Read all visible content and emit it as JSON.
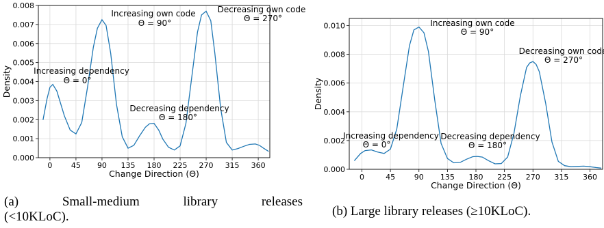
{
  "chart_data": [
    {
      "type": "line",
      "panel": "a",
      "xlabel": "Change Direction (Θ)",
      "ylabel": "Density",
      "xlim": [
        -20,
        380
      ],
      "ylim": [
        0,
        0.008
      ],
      "grid": true,
      "x_ticks": [
        "0",
        "45",
        "90",
        "135",
        "180",
        "225",
        "270",
        "315",
        "360"
      ],
      "y_ticks": [
        "0.000",
        "0.001",
        "0.002",
        "0.003",
        "0.004",
        "0.005",
        "0.006",
        "0.007",
        "0.008"
      ],
      "series": [
        {
          "x": [
            -12,
            -5,
            0,
            5,
            12,
            25,
            35,
            45,
            55,
            65,
            75,
            82,
            90,
            97,
            105,
            115,
            125,
            135,
            145,
            155,
            165,
            172,
            180,
            188,
            195,
            205,
            215,
            225,
            235,
            245,
            255,
            262,
            270,
            278,
            285,
            295,
            305,
            315,
            325,
            335,
            345,
            355,
            362,
            370,
            378
          ],
          "y": [
            0.00198,
            0.0031,
            0.0037,
            0.00385,
            0.0035,
            0.0022,
            0.00145,
            0.00125,
            0.00185,
            0.0037,
            0.0058,
            0.0068,
            0.00725,
            0.00695,
            0.0055,
            0.0028,
            0.0011,
            0.0005,
            0.00065,
            0.00115,
            0.0016,
            0.00178,
            0.0018,
            0.00145,
            0.00098,
            0.00055,
            0.0004,
            0.00062,
            0.0018,
            0.0042,
            0.0066,
            0.0075,
            0.0077,
            0.0072,
            0.0055,
            0.0026,
            0.0008,
            0.0004,
            0.00048,
            0.0006,
            0.0007,
            0.00072,
            0.00065,
            0.00048,
            0.00033
          ]
        }
      ],
      "annotations": [
        {
          "text": "Increasing own code",
          "sub": "Θ = 90°"
        },
        {
          "text": "Decreasing own code",
          "sub": "Θ = 270°"
        },
        {
          "text": "Increasing dependency",
          "sub": "Θ = 0°"
        },
        {
          "text": "Decreasing dependency",
          "sub": "Θ = 180°"
        }
      ]
    },
    {
      "type": "line",
      "panel": "b",
      "xlabel": "Change Direction (Θ)",
      "ylabel": "Density",
      "xlim": [
        -20,
        380
      ],
      "ylim": [
        0,
        0.0105
      ],
      "grid": true,
      "x_ticks": [
        "0",
        "45",
        "90",
        "135",
        "180",
        "225",
        "270",
        "315",
        "360"
      ],
      "y_ticks": [
        "0.000",
        "0.002",
        "0.004",
        "0.006",
        "0.008",
        "0.010"
      ],
      "series": [
        {
          "x": [
            -12,
            -2,
            5,
            15,
            25,
            35,
            45,
            55,
            65,
            75,
            82,
            90,
            98,
            105,
            115,
            125,
            135,
            145,
            155,
            165,
            175,
            182,
            190,
            200,
            210,
            220,
            230,
            240,
            250,
            260,
            265,
            270,
            275,
            280,
            290,
            300,
            310,
            320,
            330,
            340,
            350,
            360,
            370,
            378
          ],
          "y": [
            0.0006,
            0.0011,
            0.0013,
            0.00135,
            0.0012,
            0.0011,
            0.0014,
            0.0028,
            0.0057,
            0.0086,
            0.0097,
            0.0099,
            0.0095,
            0.0082,
            0.0048,
            0.0018,
            0.00075,
            0.00045,
            0.00048,
            0.0007,
            0.00088,
            0.0009,
            0.00085,
            0.0006,
            0.00038,
            0.0004,
            0.00085,
            0.0025,
            0.0051,
            0.0071,
            0.0074,
            0.0075,
            0.0073,
            0.0068,
            0.0046,
            0.0019,
            0.00055,
            0.00025,
            0.00018,
            0.0002,
            0.00022,
            0.00018,
            0.00012,
            8e-05
          ]
        }
      ],
      "annotations": [
        {
          "text": "Increasing own code",
          "sub": "Θ = 90°"
        },
        {
          "text": "Decreasing own code",
          "sub": "Θ = 270°"
        },
        {
          "text": "Increasing dependency",
          "sub": "Θ = 0°"
        },
        {
          "text": "Decreasing dependency",
          "sub": "Θ = 180°"
        }
      ]
    }
  ],
  "captions": {
    "a_row1": [
      "(a)",
      "Small-medium",
      "library",
      "releases"
    ],
    "a_row2": "(<10KLoC).",
    "b": "(b) Large library releases (≥10KLoC)."
  }
}
